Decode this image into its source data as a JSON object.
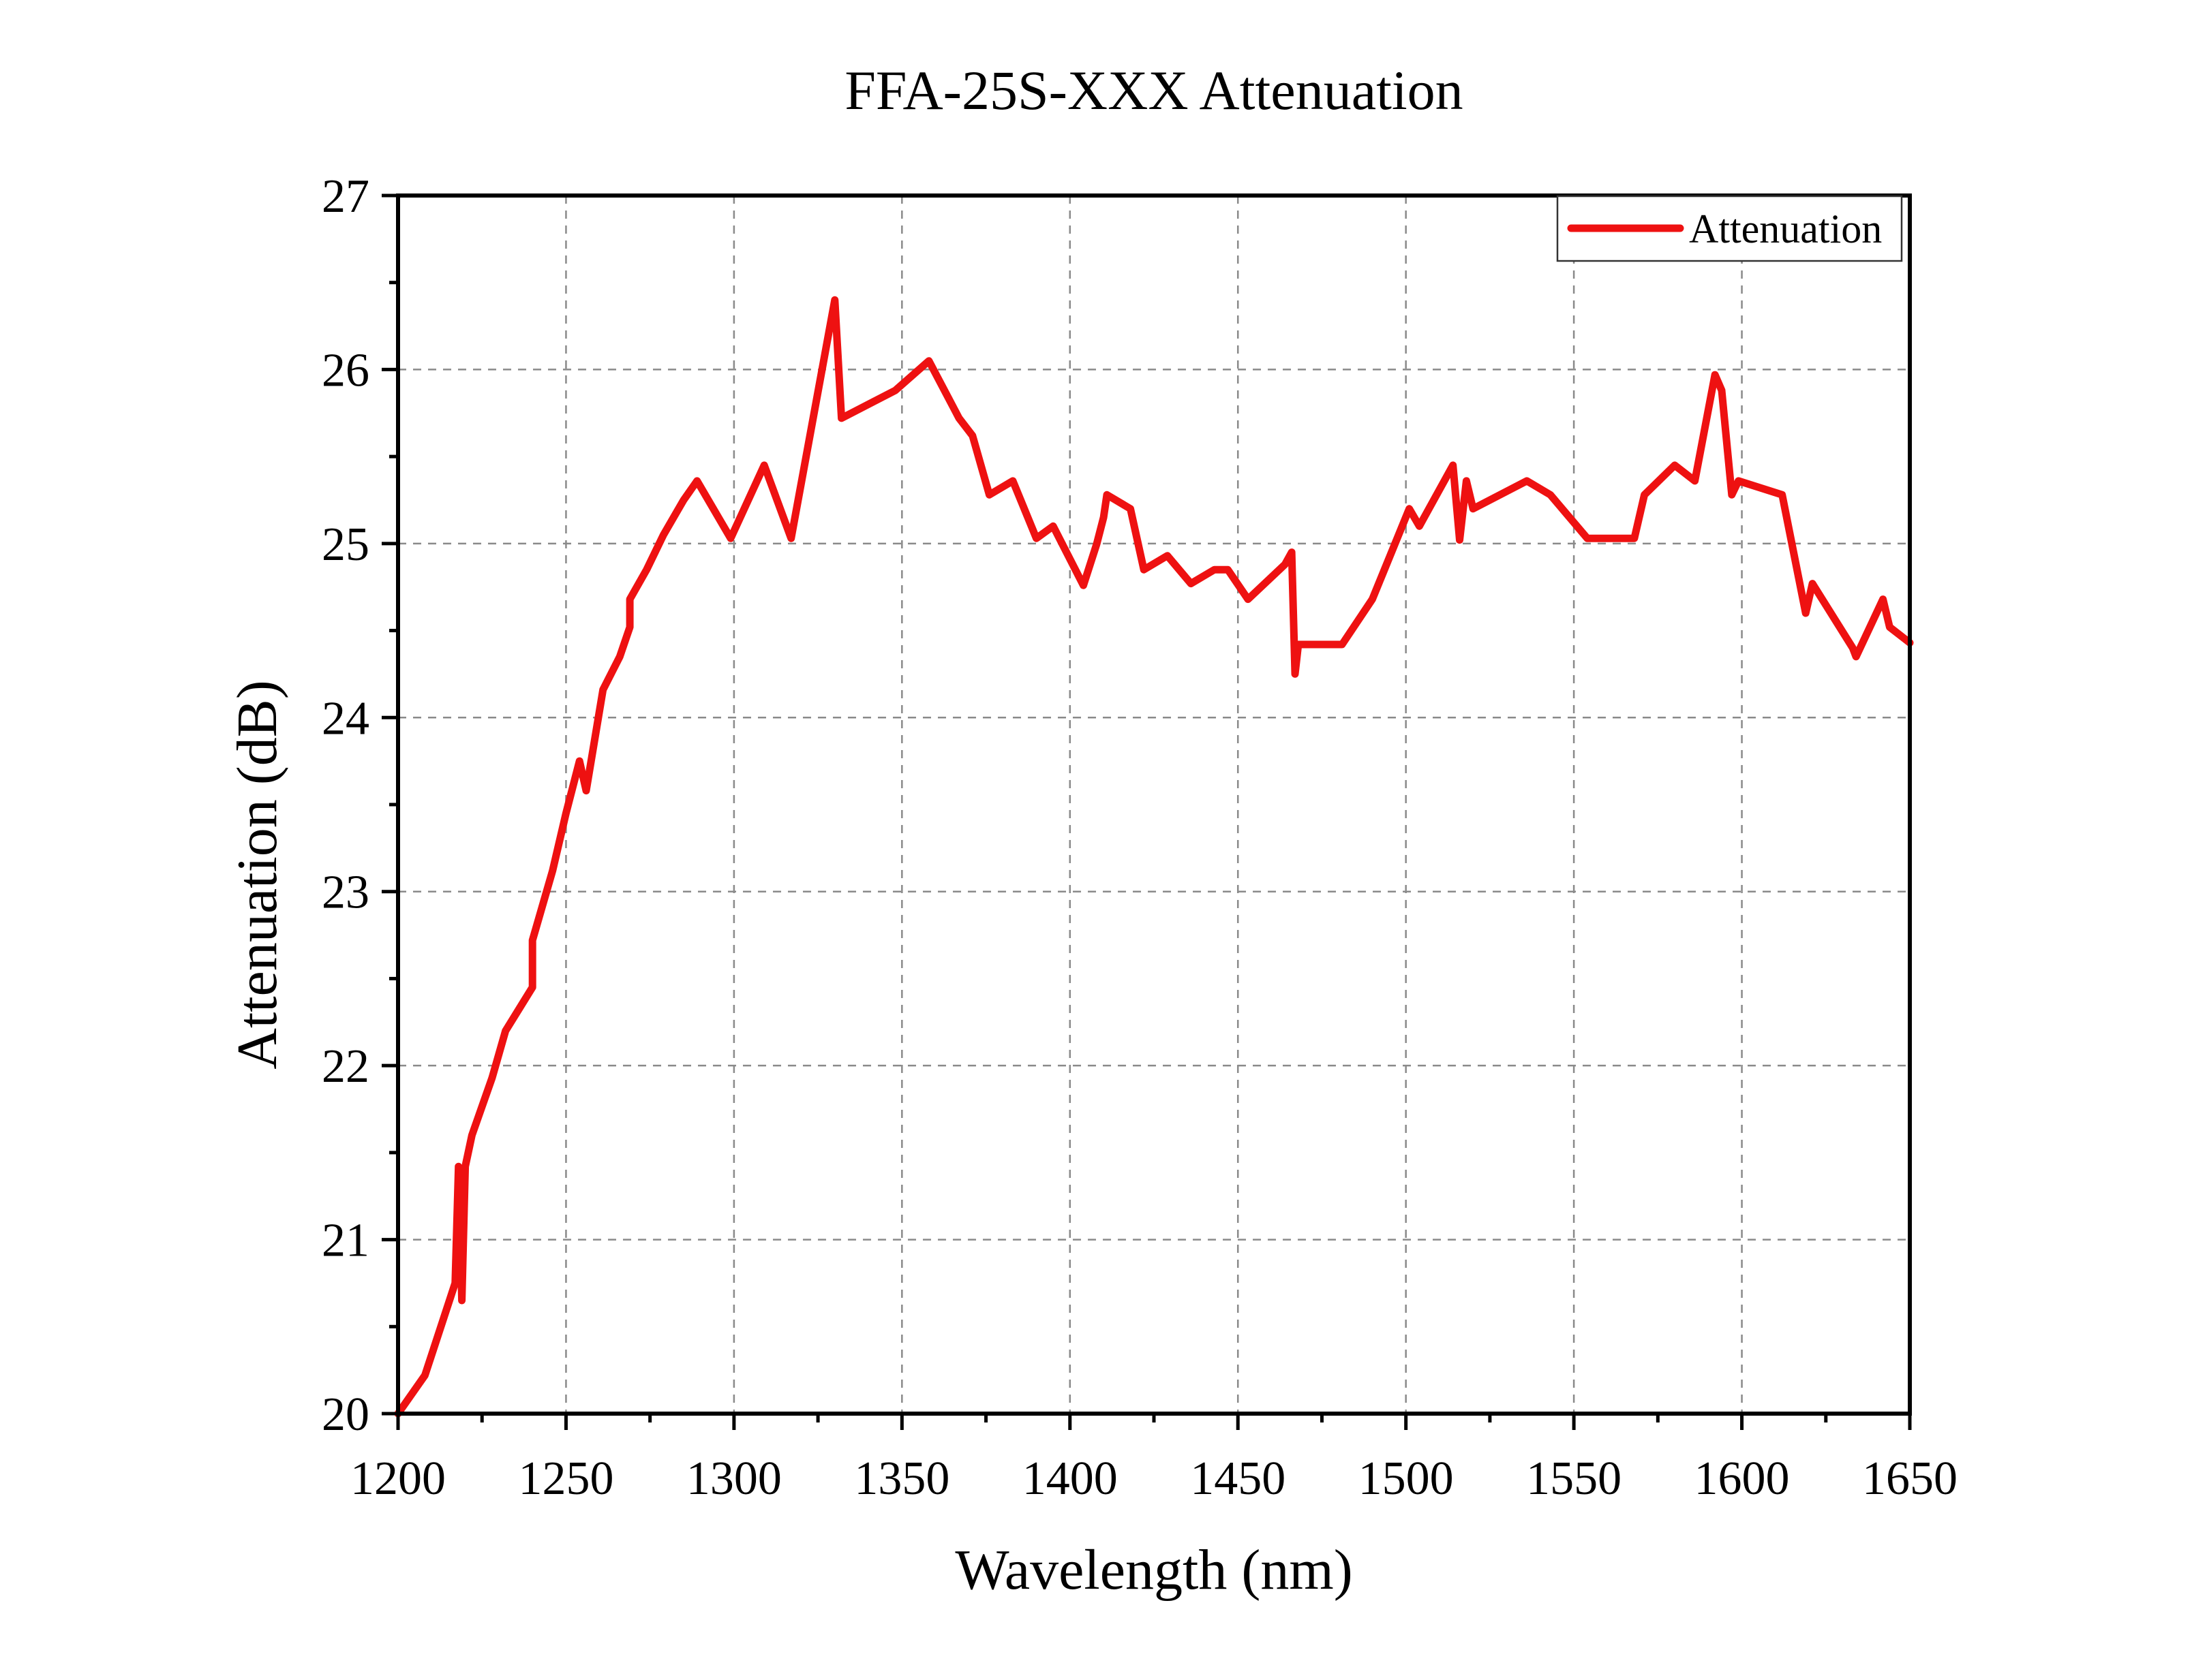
{
  "chart_data": {
    "type": "line",
    "title": "FFA-25S-XXX Attenuation",
    "xlabel": "Wavelength (nm)",
    "ylabel": "Attenuation (dB)",
    "xlim": [
      1200,
      1650
    ],
    "ylim": [
      20,
      27
    ],
    "x_ticks": [
      1200,
      1250,
      1300,
      1350,
      1400,
      1450,
      1500,
      1550,
      1600,
      1650
    ],
    "y_ticks": [
      20,
      21,
      22,
      23,
      24,
      25,
      26,
      27
    ],
    "x_tick_labels": [
      "1200",
      "1250",
      "1300",
      "1350",
      "1400",
      "1450",
      "1500",
      "1550",
      "1600",
      "1650"
    ],
    "y_tick_labels": [
      "20",
      "21",
      "22",
      "23",
      "24",
      "25",
      "26",
      "27"
    ],
    "grid": true,
    "legend_position": "top-right",
    "series": [
      {
        "name": "Attenuation",
        "color": "#ee1111",
        "x": [
          1200,
          1208,
          1217,
          1218,
          1219,
          1220,
          1222,
          1228,
          1232,
          1240,
          1240,
          1246,
          1250,
          1254,
          1256,
          1261,
          1266,
          1269,
          1269,
          1274,
          1279,
          1285,
          1289,
          1299,
          1309,
          1317,
          1330,
          1332,
          1348,
          1358,
          1367,
          1371,
          1376,
          1383,
          1390,
          1395,
          1404,
          1408,
          1410,
          1411,
          1418,
          1422,
          1429,
          1436,
          1443,
          1447,
          1453,
          1464,
          1466,
          1467,
          1468,
          1481,
          1490,
          1501,
          1504,
          1514,
          1516,
          1518,
          1520,
          1536,
          1543,
          1554,
          1568,
          1571,
          1580,
          1586,
          1592,
          1594,
          1597,
          1599,
          1612,
          1619,
          1621,
          1633,
          1634,
          1642,
          1644,
          1650
        ],
        "y": [
          20.0,
          20.22,
          20.75,
          21.42,
          20.65,
          21.42,
          21.6,
          21.93,
          22.2,
          22.45,
          22.72,
          23.12,
          23.45,
          23.75,
          23.58,
          24.16,
          24.35,
          24.52,
          24.68,
          24.85,
          25.05,
          25.25,
          25.36,
          25.03,
          25.45,
          25.03,
          26.4,
          25.72,
          25.88,
          26.05,
          25.72,
          25.62,
          25.28,
          25.36,
          25.03,
          25.1,
          24.76,
          25.0,
          25.15,
          25.28,
          25.2,
          24.85,
          24.93,
          24.77,
          24.85,
          24.85,
          24.68,
          24.88,
          24.95,
          24.25,
          24.42,
          24.42,
          24.68,
          25.2,
          25.1,
          25.45,
          25.02,
          25.36,
          25.2,
          25.36,
          25.28,
          25.03,
          25.03,
          25.28,
          25.45,
          25.36,
          25.97,
          25.88,
          25.28,
          25.36,
          25.28,
          24.6,
          24.77,
          24.4,
          24.35,
          24.68,
          24.52,
          24.43
        ]
      }
    ]
  }
}
